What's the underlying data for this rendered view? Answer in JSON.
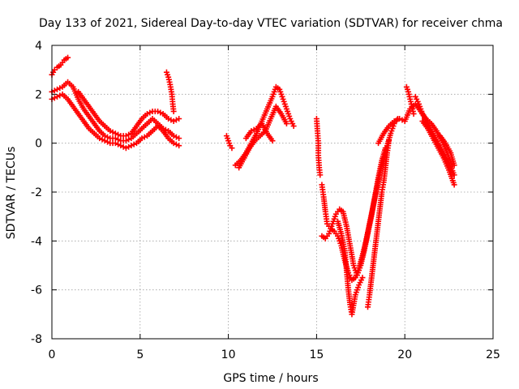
{
  "chart_data": {
    "type": "scatter",
    "title": "Day 133 of 2021, Sidereal Day-to-day VTEC variation (SDTVAR) for receiver chma",
    "xlabel": "GPS time / hours",
    "ylabel": "SDTVAR / TECUs",
    "xlim": [
      0,
      25
    ],
    "ylim": [
      -8,
      4
    ],
    "xticks": [
      0,
      5,
      10,
      15,
      20,
      25
    ],
    "yticks": [
      -8,
      -6,
      -4,
      -2,
      0,
      2,
      4
    ],
    "grid": true,
    "marker": "plus",
    "color": "#ff0000",
    "series": [
      {
        "name": "SDTVAR",
        "segments": [
          [
            [
              0.0,
              2.1
            ],
            [
              0.3,
              2.2
            ],
            [
              0.6,
              2.3
            ],
            [
              0.9,
              2.5
            ],
            [
              1.2,
              2.3
            ],
            [
              1.5,
              1.8
            ],
            [
              1.8,
              1.4
            ],
            [
              2.1,
              1.1
            ],
            [
              2.4,
              0.8
            ],
            [
              2.7,
              0.5
            ],
            [
              3.0,
              0.3
            ],
            [
              3.3,
              0.2
            ],
            [
              3.6,
              0.2
            ],
            [
              3.9,
              0.1
            ],
            [
              4.2,
              0.1
            ],
            [
              4.5,
              0.2
            ],
            [
              4.8,
              0.4
            ],
            [
              5.1,
              0.6
            ],
            [
              5.4,
              0.8
            ],
            [
              5.7,
              1.0
            ],
            [
              6.0,
              0.8
            ],
            [
              6.3,
              0.6
            ],
            [
              6.6,
              0.5
            ],
            [
              6.9,
              0.3
            ],
            [
              7.2,
              0.2
            ]
          ],
          [
            [
              0.0,
              2.8
            ],
            [
              0.15,
              3.0
            ],
            [
              0.3,
              3.1
            ],
            [
              0.5,
              3.2
            ],
            [
              0.7,
              3.4
            ],
            [
              0.9,
              3.5
            ]
          ],
          [
            [
              0.0,
              1.8
            ],
            [
              0.3,
              1.9
            ],
            [
              0.6,
              2.0
            ],
            [
              0.9,
              1.8
            ],
            [
              1.2,
              1.5
            ],
            [
              1.5,
              1.2
            ],
            [
              1.8,
              0.9
            ],
            [
              2.1,
              0.6
            ],
            [
              2.4,
              0.4
            ],
            [
              2.7,
              0.2
            ],
            [
              3.0,
              0.1
            ],
            [
              3.3,
              0.0
            ],
            [
              3.6,
              0.0
            ],
            [
              3.9,
              -0.1
            ],
            [
              4.2,
              -0.2
            ],
            [
              4.5,
              -0.1
            ],
            [
              4.8,
              0.0
            ],
            [
              5.1,
              0.2
            ],
            [
              5.4,
              0.3
            ],
            [
              5.7,
              0.5
            ],
            [
              6.0,
              0.7
            ],
            [
              6.3,
              0.5
            ],
            [
              6.6,
              0.2
            ],
            [
              6.9,
              0.0
            ],
            [
              7.2,
              -0.1
            ]
          ],
          [
            [
              1.5,
              2.1
            ],
            [
              1.8,
              1.8
            ],
            [
              2.1,
              1.5
            ],
            [
              2.4,
              1.2
            ],
            [
              2.7,
              0.9
            ],
            [
              3.0,
              0.7
            ],
            [
              3.3,
              0.5
            ],
            [
              3.6,
              0.4
            ],
            [
              3.9,
              0.3
            ],
            [
              4.2,
              0.3
            ],
            [
              4.5,
              0.4
            ],
            [
              4.8,
              0.7
            ],
            [
              5.1,
              1.0
            ],
            [
              5.4,
              1.2
            ],
            [
              5.7,
              1.3
            ],
            [
              6.0,
              1.3
            ],
            [
              6.3,
              1.2
            ],
            [
              6.6,
              1.0
            ],
            [
              6.9,
              0.9
            ],
            [
              7.2,
              1.0
            ]
          ],
          [
            [
              6.5,
              2.9
            ],
            [
              6.6,
              2.7
            ],
            [
              6.7,
              2.4
            ],
            [
              6.8,
              2.0
            ],
            [
              6.85,
              1.6
            ],
            [
              6.9,
              1.3
            ]
          ],
          [
            [
              9.9,
              0.3
            ],
            [
              10.0,
              0.1
            ],
            [
              10.1,
              -0.1
            ],
            [
              10.2,
              -0.2
            ]
          ],
          [
            [
              10.4,
              -0.9
            ],
            [
              10.7,
              -0.7
            ],
            [
              11.0,
              -0.4
            ],
            [
              11.3,
              0.0
            ],
            [
              11.6,
              0.4
            ],
            [
              11.9,
              0.9
            ],
            [
              12.2,
              1.4
            ],
            [
              12.5,
              1.9
            ],
            [
              12.7,
              2.3
            ],
            [
              12.9,
              2.2
            ],
            [
              13.1,
              1.8
            ],
            [
              13.3,
              1.4
            ],
            [
              13.5,
              1.0
            ],
            [
              13.7,
              0.7
            ]
          ],
          [
            [
              10.6,
              -1.0
            ],
            [
              10.9,
              -0.6
            ],
            [
              11.2,
              -0.2
            ],
            [
              11.5,
              0.1
            ],
            [
              11.8,
              0.3
            ],
            [
              12.1,
              0.5
            ],
            [
              12.4,
              1.0
            ],
            [
              12.7,
              1.5
            ],
            [
              13.0,
              1.2
            ],
            [
              13.3,
              0.8
            ]
          ],
          [
            [
              11.0,
              0.2
            ],
            [
              11.3,
              0.5
            ],
            [
              11.6,
              0.6
            ],
            [
              11.9,
              0.8
            ],
            [
              12.2,
              0.4
            ],
            [
              12.5,
              0.1
            ]
          ],
          [
            [
              15.0,
              1.0
            ],
            [
              15.05,
              0.5
            ],
            [
              15.1,
              0.0
            ],
            [
              15.1,
              -0.5
            ],
            [
              15.15,
              -1.0
            ],
            [
              15.2,
              -1.3
            ]
          ],
          [
            [
              15.3,
              -1.7
            ],
            [
              15.4,
              -2.2
            ],
            [
              15.5,
              -2.8
            ],
            [
              15.6,
              -3.3
            ],
            [
              15.8,
              -3.5
            ],
            [
              16.0,
              -3.6
            ],
            [
              16.2,
              -3.8
            ],
            [
              16.4,
              -4.2
            ],
            [
              16.6,
              -4.8
            ],
            [
              16.8,
              -5.3
            ],
            [
              17.0,
              -5.6
            ],
            [
              17.2,
              -5.5
            ],
            [
              17.4,
              -5.1
            ],
            [
              17.6,
              -4.6
            ],
            [
              17.8,
              -4.0
            ],
            [
              18.0,
              -3.3
            ],
            [
              18.2,
              -2.6
            ],
            [
              18.4,
              -1.9
            ],
            [
              18.6,
              -1.2
            ],
            [
              18.8,
              -0.6
            ],
            [
              19.0,
              -0.1
            ],
            [
              19.2,
              0.4
            ],
            [
              19.4,
              0.8
            ],
            [
              19.6,
              1.0
            ]
          ],
          [
            [
              15.3,
              -3.8
            ],
            [
              15.5,
              -3.9
            ],
            [
              15.7,
              -3.7
            ],
            [
              15.9,
              -3.3
            ],
            [
              16.1,
              -2.9
            ],
            [
              16.3,
              -2.7
            ],
            [
              16.5,
              -2.8
            ],
            [
              16.7,
              -3.4
            ],
            [
              16.9,
              -4.2
            ],
            [
              17.1,
              -5.0
            ],
            [
              17.3,
              -5.4
            ],
            [
              17.5,
              -5.0
            ],
            [
              17.7,
              -4.4
            ],
            [
              17.9,
              -3.7
            ],
            [
              18.1,
              -3.0
            ],
            [
              18.3,
              -2.2
            ],
            [
              18.5,
              -1.4
            ],
            [
              18.7,
              -0.7
            ],
            [
              18.9,
              -0.2
            ]
          ],
          [
            [
              16.2,
              -3.2
            ],
            [
              16.4,
              -3.7
            ],
            [
              16.6,
              -4.4
            ],
            [
              16.7,
              -5.2
            ],
            [
              16.8,
              -6.0
            ],
            [
              16.9,
              -6.6
            ],
            [
              17.0,
              -7.0
            ],
            [
              17.2,
              -6.2
            ],
            [
              17.4,
              -5.8
            ],
            [
              17.6,
              -5.5
            ]
          ],
          [
            [
              17.9,
              -6.7
            ],
            [
              18.0,
              -6.2
            ],
            [
              18.1,
              -5.6
            ],
            [
              18.2,
              -5.0
            ],
            [
              18.3,
              -4.4
            ],
            [
              18.4,
              -3.8
            ],
            [
              18.5,
              -3.2
            ],
            [
              18.6,
              -2.6
            ],
            [
              18.7,
              -2.0
            ],
            [
              18.8,
              -1.6
            ],
            [
              18.9,
              -1.0
            ],
            [
              19.0,
              -0.4
            ],
            [
              19.1,
              0.1
            ]
          ],
          [
            [
              18.5,
              0.0
            ],
            [
              18.8,
              0.4
            ],
            [
              19.1,
              0.7
            ],
            [
              19.4,
              0.9
            ],
            [
              19.7,
              1.0
            ],
            [
              20.0,
              0.9
            ],
            [
              20.3,
              1.4
            ],
            [
              20.6,
              1.6
            ],
            [
              20.9,
              1.3
            ],
            [
              21.2,
              1.0
            ],
            [
              21.5,
              0.8
            ],
            [
              21.8,
              0.5
            ],
            [
              22.1,
              0.1
            ],
            [
              22.4,
              -0.4
            ],
            [
              22.7,
              -0.9
            ]
          ],
          [
            [
              20.1,
              2.3
            ],
            [
              20.2,
              2.1
            ],
            [
              20.3,
              1.8
            ],
            [
              20.4,
              1.5
            ],
            [
              20.5,
              1.2
            ]
          ],
          [
            [
              20.6,
              1.9
            ],
            [
              20.8,
              1.6
            ],
            [
              21.0,
              1.2
            ],
            [
              21.3,
              0.8
            ],
            [
              21.6,
              0.4
            ],
            [
              21.9,
              0.0
            ],
            [
              22.2,
              -0.4
            ],
            [
              22.5,
              -0.8
            ],
            [
              22.8,
              -1.3
            ]
          ],
          [
            [
              21.0,
              0.9
            ],
            [
              21.3,
              0.6
            ],
            [
              21.6,
              0.2
            ],
            [
              21.9,
              -0.2
            ],
            [
              22.2,
              -0.6
            ],
            [
              22.5,
              -1.1
            ],
            [
              22.8,
              -1.7
            ]
          ],
          [
            [
              22.0,
              0.3
            ],
            [
              22.3,
              0.0
            ],
            [
              22.6,
              -0.4
            ],
            [
              22.8,
              -0.9
            ]
          ]
        ]
      }
    ]
  }
}
